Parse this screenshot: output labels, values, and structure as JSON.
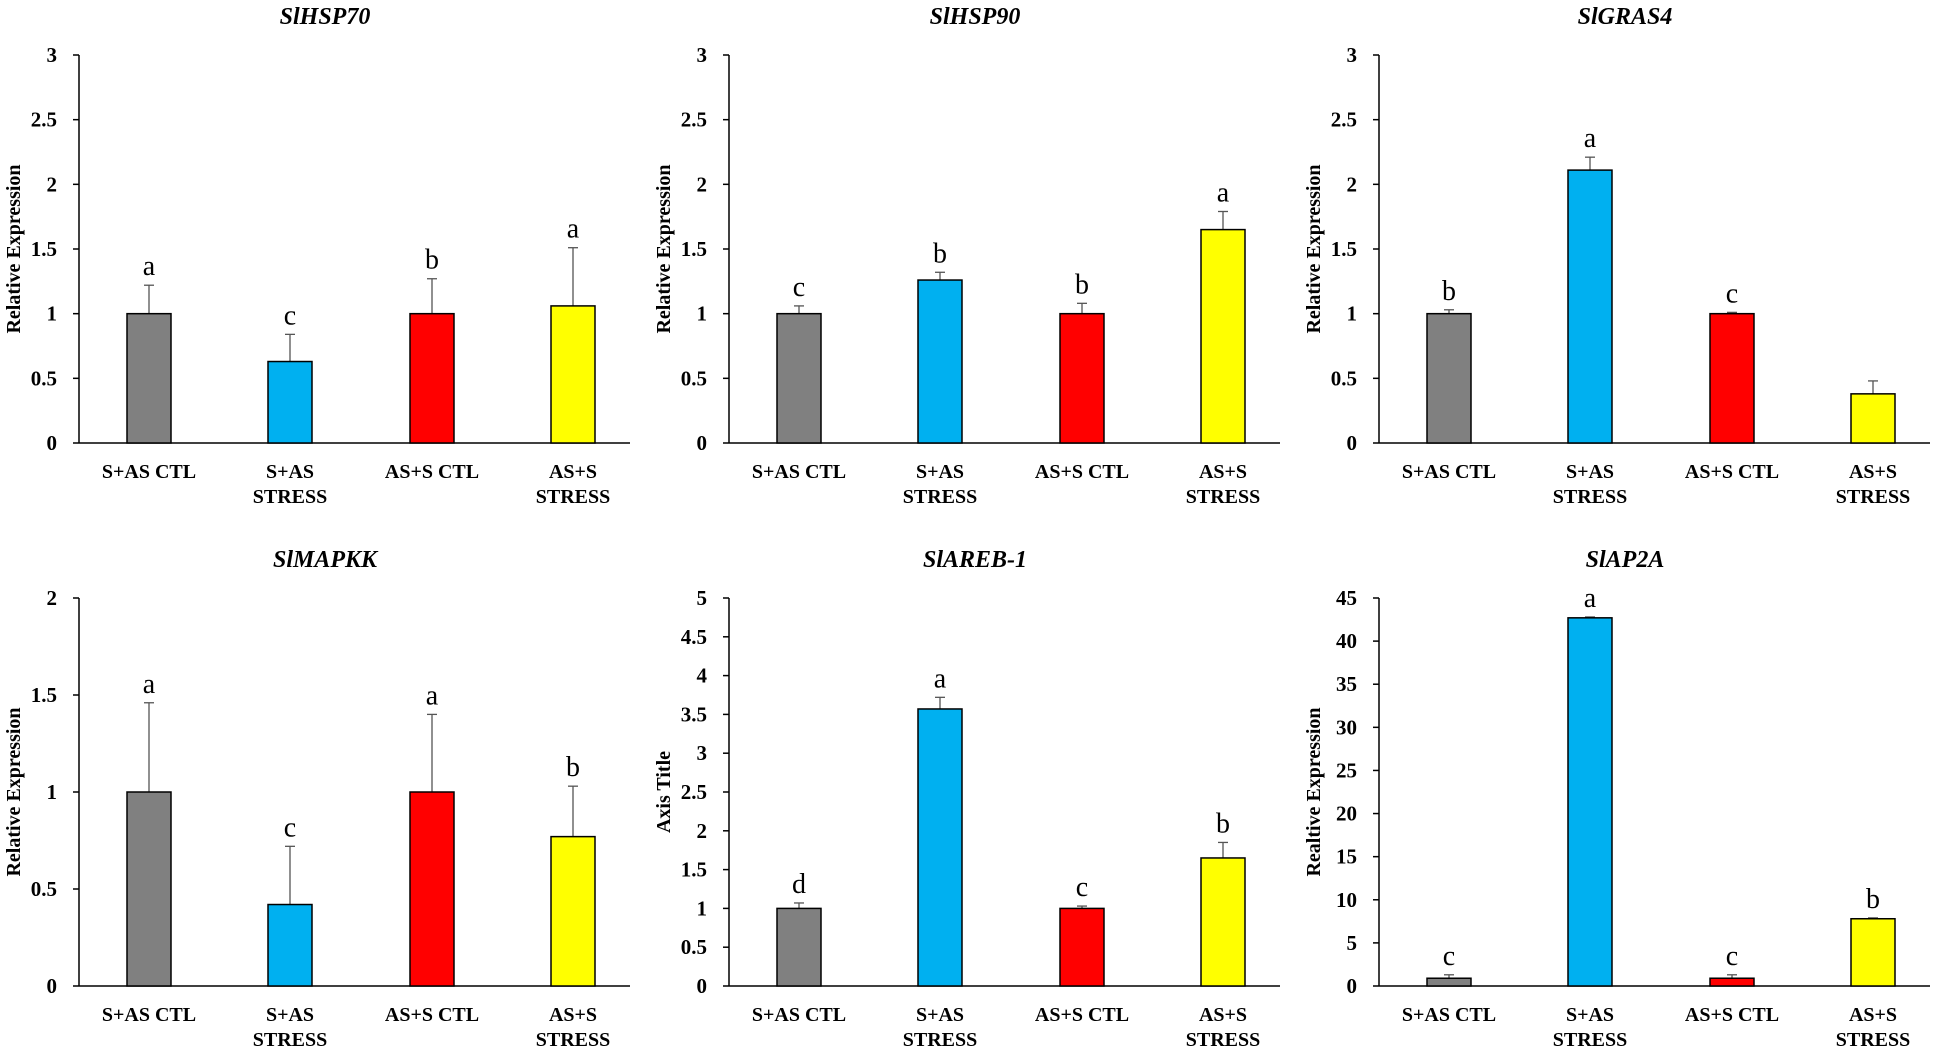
{
  "colors": [
    "#808080",
    "#00b0f0",
    "#ff0000",
    "#ffff00"
  ],
  "chart_data": [
    {
      "type": "bar",
      "title": "SlHSP70",
      "ylabel": "Relative Expression",
      "ylim": [
        0,
        3
      ],
      "yticks": [
        "0",
        "0.5",
        "1",
        "1.5",
        "2",
        "2.5",
        "3"
      ],
      "ytick_values": [
        0,
        0.5,
        1,
        1.5,
        2,
        2.5,
        3
      ],
      "categories": [
        [
          "S+AS CTL"
        ],
        [
          "S+AS",
          "STRESS"
        ],
        [
          "AS+S CTL"
        ],
        [
          "AS+S",
          "STRESS"
        ]
      ],
      "values": [
        1.0,
        0.63,
        1.0,
        1.06
      ],
      "errors": [
        0.22,
        0.21,
        0.27,
        0.45
      ],
      "letters": [
        "a",
        "c",
        "b",
        "a"
      ]
    },
    {
      "type": "bar",
      "title": "SlHSP90",
      "ylabel": "Relative Expression",
      "ylim": [
        0,
        3
      ],
      "yticks": [
        "0",
        "0.5",
        "1",
        "1.5",
        "2",
        "2.5",
        "3"
      ],
      "ytick_values": [
        0,
        0.5,
        1,
        1.5,
        2,
        2.5,
        3
      ],
      "categories": [
        [
          "S+AS CTL"
        ],
        [
          "S+AS",
          "STRESS"
        ],
        [
          "AS+S CTL"
        ],
        [
          "AS+S",
          "STRESS"
        ]
      ],
      "values": [
        1.0,
        1.26,
        1.0,
        1.65
      ],
      "errors": [
        0.06,
        0.06,
        0.08,
        0.14
      ],
      "letters": [
        "c",
        "b",
        "b",
        "a"
      ]
    },
    {
      "type": "bar",
      "title": "SlGRAS4",
      "ylabel": "Relative Expression",
      "ylim": [
        0,
        3
      ],
      "yticks": [
        "0",
        "0.5",
        "1",
        "1.5",
        "2",
        "2.5",
        "3"
      ],
      "ytick_values": [
        0,
        0.5,
        1,
        1.5,
        2,
        2.5,
        3
      ],
      "categories": [
        [
          "S+AS CTL"
        ],
        [
          "S+AS",
          "STRESS"
        ],
        [
          "AS+S CTL"
        ],
        [
          "AS+S",
          "STRESS"
        ]
      ],
      "values": [
        1.0,
        2.11,
        1.0,
        0.38
      ],
      "errors": [
        0.03,
        0.1,
        0.01,
        0.1
      ],
      "letters": [
        "b",
        "a",
        "c",
        ""
      ]
    },
    {
      "type": "bar",
      "title": "SlMAPKK",
      "ylabel": "Relative Expression",
      "ylim": [
        0,
        2
      ],
      "yticks": [
        "0",
        "0.5",
        "1",
        "1.5",
        "2"
      ],
      "ytick_values": [
        0,
        0.5,
        1,
        1.5,
        2
      ],
      "categories": [
        [
          "S+AS CTL"
        ],
        [
          "S+AS",
          "STRESS"
        ],
        [
          "AS+S CTL"
        ],
        [
          "AS+S",
          "STRESS"
        ]
      ],
      "values": [
        1.0,
        0.42,
        1.0,
        0.77
      ],
      "errors": [
        0.46,
        0.3,
        0.4,
        0.26
      ],
      "letters": [
        "a",
        "c",
        "a",
        "b"
      ]
    },
    {
      "type": "bar",
      "title": "SlAREB-1",
      "ylabel": "Axis Title",
      "ylim": [
        0,
        5
      ],
      "yticks": [
        "0",
        "0.5",
        "1",
        "1.5",
        "2",
        "2.5",
        "3",
        "3.5",
        "4",
        "4.5",
        "5"
      ],
      "ytick_values": [
        0,
        0.5,
        1,
        1.5,
        2,
        2.5,
        3,
        3.5,
        4,
        4.5,
        5
      ],
      "categories": [
        [
          "S+AS CTL"
        ],
        [
          "S+AS",
          "STRESS"
        ],
        [
          "AS+S CTL"
        ],
        [
          "AS+S",
          "STRESS"
        ]
      ],
      "values": [
        1.0,
        3.57,
        1.0,
        1.65
      ],
      "errors": [
        0.07,
        0.15,
        0.03,
        0.2
      ],
      "letters": [
        "d",
        "a",
        "c",
        "b"
      ]
    },
    {
      "type": "bar",
      "title": "SlAP2A",
      "ylabel": "Realtive Expression",
      "ylim": [
        0,
        45
      ],
      "yticks": [
        "0",
        "5",
        "10",
        "15",
        "20",
        "25",
        "30",
        "35",
        "40",
        "45"
      ],
      "ytick_values": [
        0,
        5,
        10,
        15,
        20,
        25,
        30,
        35,
        40,
        45
      ],
      "categories": [
        [
          "S+AS CTL"
        ],
        [
          "S+AS",
          "STRESS"
        ],
        [
          "AS+S CTL"
        ],
        [
          "AS+S",
          "STRESS"
        ]
      ],
      "values": [
        0.9,
        42.7,
        0.9,
        7.8
      ],
      "errors": [
        0.4,
        0.1,
        0.4,
        0.1
      ],
      "letters": [
        "c",
        "a",
        "c",
        "b"
      ]
    }
  ]
}
